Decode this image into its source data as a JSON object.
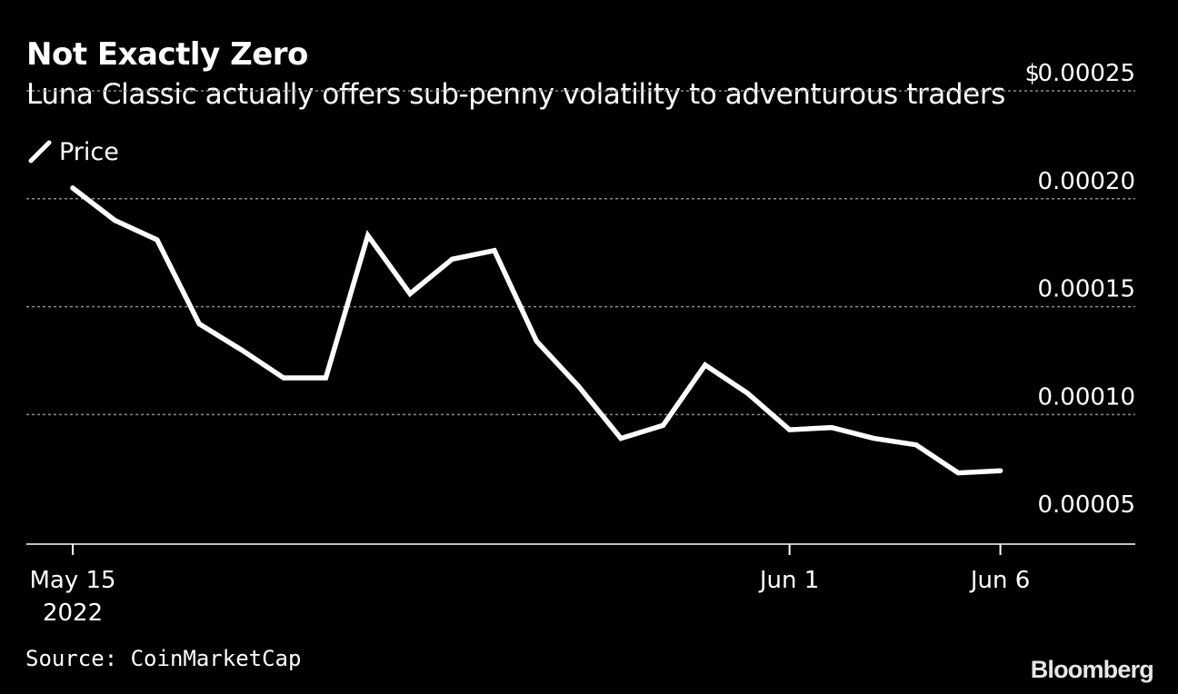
{
  "header": {
    "title": "Not Exactly Zero",
    "subtitle": "Luna Classic actually offers sub-penny volatility to adventurous traders"
  },
  "legend": {
    "label": "Price",
    "icon": "diagonal-line-icon",
    "color": "#ffffff"
  },
  "footer": {
    "source": "Source: CoinMarketCap",
    "brand": "Bloomberg"
  },
  "colors": {
    "background": "#000000",
    "line": "#ffffff",
    "grid": "#8c8c8c",
    "text": "#ffffff"
  },
  "chart_data": {
    "type": "line",
    "title": "Not Exactly Zero",
    "subtitle": "Luna Classic actually offers sub-penny volatility to adventurous traders",
    "xlabel": "",
    "ylabel": "",
    "y_unit_prefix": "$",
    "ylim": [
      4e-05,
      0.00025
    ],
    "yticks": [
      0.00025,
      0.0002,
      0.00015,
      0.0001,
      5e-05
    ],
    "ytick_labels": [
      "0.00025",
      "0.00020",
      "0.00015",
      "0.00010",
      "0.00005"
    ],
    "xlim": [
      -1.1,
      25.2
    ],
    "xticks": [
      {
        "day": 0,
        "label": "May 15",
        "sublabel": "2022"
      },
      {
        "day": 17,
        "label": "Jun 1",
        "sublabel": ""
      },
      {
        "day": 22,
        "label": "Jun 6",
        "sublabel": ""
      }
    ],
    "grid": true,
    "legend_position": "top-left",
    "series": [
      {
        "name": "Price",
        "x": [
          0,
          1,
          2,
          3,
          4,
          5,
          6,
          7,
          8,
          9,
          10,
          11,
          12,
          13,
          14,
          15,
          16,
          17,
          18,
          19,
          20,
          21,
          22
        ],
        "values": [
          0.000205,
          0.00019,
          0.000181,
          0.000142,
          0.00013,
          0.000117,
          0.000117,
          0.000183,
          0.000156,
          0.000172,
          0.000176,
          0.000134,
          0.000113,
          8.9e-05,
          9.5e-05,
          0.000123,
          0.00011,
          9.3e-05,
          9.4e-05,
          8.9e-05,
          8.6e-05,
          7.3e-05,
          7.4e-05
        ]
      }
    ]
  }
}
